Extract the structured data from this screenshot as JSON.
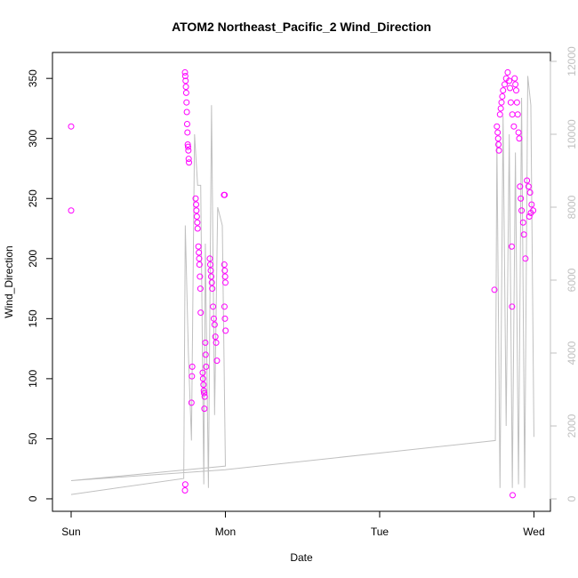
{
  "chart_data": {
    "type": "scatter",
    "title": "ATOM2 Northeast_Pacific_2 Wind_Direction",
    "x_label": "Date",
    "y_label": "Wind_Direction",
    "xlim": [
      -0.121,
      3.107
    ],
    "xticks": [
      {
        "value": 0,
        "label": "Sun"
      },
      {
        "value": 1,
        "label": "Mon"
      },
      {
        "value": 2,
        "label": "Tue"
      },
      {
        "value": 3,
        "label": "Wed"
      }
    ],
    "ylim": [
      -10.4,
      371.6
    ],
    "yticks": [
      0,
      50,
      100,
      150,
      200,
      250,
      300,
      350
    ],
    "y2lim": [
      -341,
      12244
    ],
    "y2ticks": [
      0,
      2000,
      4000,
      6000,
      8000,
      10000,
      12000
    ],
    "series": [
      {
        "type": "scatter",
        "color": "#ff00ff",
        "x": [
          0,
          0,
          0.738,
          0.74,
          0.742,
          0.744,
          0.746,
          0.748,
          0.75,
          0.752,
          0.754,
          0.756,
          0.758,
          0.76,
          0.762,
          0.764,
          0.74,
          0.738,
          0.785,
          0.783,
          0.78,
          0.807,
          0.81,
          0.812,
          0.815,
          0.818,
          0.82,
          0.825,
          0.828,
          0.83,
          0.832,
          0.835,
          0.838,
          0.84,
          0.853,
          0.855,
          0.858,
          0.86,
          0.862,
          0.864,
          0.866,
          0.87,
          0.872,
          0.875,
          0.899,
          0.902,
          0.905,
          0.908,
          0.912,
          0.915,
          0.92,
          0.925,
          0.93,
          0.935,
          0.94,
          0.945,
          0.991,
          0.995,
          0.993,
          0.996,
          0.998,
          1.0,
          0.994,
          0.997,
          1.001,
          2.744,
          2.76,
          2.765,
          2.768,
          2.77,
          2.773,
          2.78,
          2.785,
          2.79,
          2.795,
          2.8,
          2.81,
          2.82,
          2.83,
          2.84,
          2.845,
          2.85,
          2.86,
          2.87,
          2.862,
          2.858,
          2.856,
          2.875,
          2.88,
          2.885,
          2.89,
          2.895,
          2.9,
          2.905,
          2.91,
          2.915,
          2.92,
          2.93,
          2.935,
          2.945,
          2.955,
          2.965,
          2.975,
          2.985,
          2.995,
          2.97,
          2.98
        ],
        "values": [
          310,
          240,
          355,
          352,
          348,
          343,
          338,
          330,
          322,
          312,
          305,
          295,
          293,
          290,
          283,
          280,
          12,
          7,
          110,
          102,
          80,
          250,
          245,
          240,
          235,
          230,
          225,
          210,
          205,
          200,
          195,
          185,
          175,
          155,
          105,
          100,
          95,
          90,
          88,
          75,
          85,
          130,
          120,
          110,
          200,
          195,
          190,
          185,
          180,
          175,
          160,
          150,
          145,
          135,
          130,
          115,
          253,
          253,
          195,
          190,
          185,
          180,
          160,
          150,
          140,
          174,
          310,
          305,
          300,
          295,
          290,
          320,
          325,
          330,
          335,
          340,
          345,
          350,
          355,
          348,
          342,
          330,
          320,
          310,
          3,
          160,
          210,
          350,
          345,
          340,
          330,
          320,
          305,
          300,
          260,
          250,
          240,
          230,
          220,
          200,
          265,
          260,
          255,
          245,
          240,
          235,
          238
        ]
      },
      {
        "type": "line",
        "axis": "y2",
        "color": "#c0c0c0",
        "x": [
          0,
          0.73,
          0.74,
          0.76,
          0.78,
          0.8,
          0.82,
          0.84,
          0.86,
          0.87,
          0.89,
          0.91,
          0.93,
          0.95,
          0.98,
          1.0,
          0.0,
          1.0,
          2.75,
          2.76,
          2.78,
          2.8,
          2.82,
          2.84,
          2.86,
          2.88,
          2.9,
          2.92,
          2.94,
          2.96,
          2.98,
          3.0
        ],
        "values": [
          120,
          560,
          7500,
          4000,
          1600,
          10000,
          8600,
          8600,
          400,
          7000,
          300,
          10800,
          2300,
          8000,
          7500,
          900,
          500,
          800,
          1600,
          9800,
          300,
          10500,
          2000,
          10000,
          300,
          9500,
          400,
          11000,
          300,
          11600,
          10800,
          1700
        ]
      }
    ]
  }
}
